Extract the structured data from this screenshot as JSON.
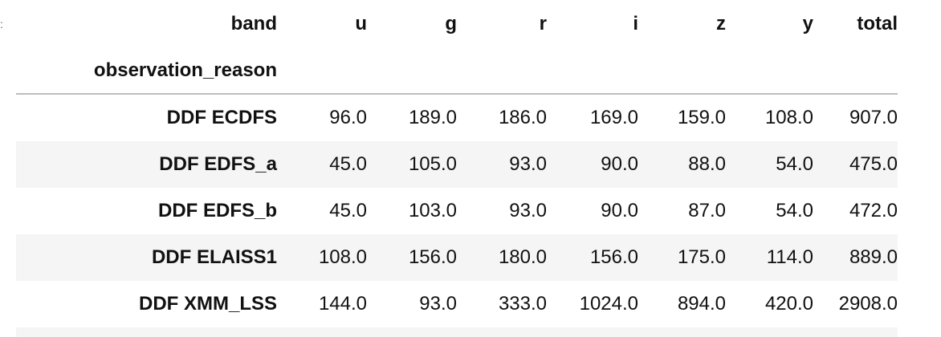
{
  "table": {
    "columns_name": "band",
    "index_name": "observation_reason",
    "columns": [
      "u",
      "g",
      "r",
      "i",
      "z",
      "y",
      "total"
    ],
    "rows": [
      {
        "label": "DDF ECDFS",
        "values": [
          "96.0",
          "189.0",
          "186.0",
          "169.0",
          "159.0",
          "108.0",
          "907.0"
        ]
      },
      {
        "label": "DDF EDFS_a",
        "values": [
          "45.0",
          "105.0",
          "93.0",
          "90.0",
          "88.0",
          "54.0",
          "475.0"
        ]
      },
      {
        "label": "DDF EDFS_b",
        "values": [
          "45.0",
          "103.0",
          "93.0",
          "90.0",
          "87.0",
          "54.0",
          "472.0"
        ]
      },
      {
        "label": "DDF ELAISS1",
        "values": [
          "108.0",
          "156.0",
          "180.0",
          "156.0",
          "175.0",
          "114.0",
          "889.0"
        ]
      },
      {
        "label": "DDF XMM_LSS",
        "values": [
          "144.0",
          "93.0",
          "333.0",
          "1024.0",
          "894.0",
          "420.0",
          "2908.0"
        ]
      }
    ]
  },
  "colors": {
    "row_stripe": "#f5f5f5",
    "header_rule": "#bdbdbd",
    "text": "#111111"
  }
}
